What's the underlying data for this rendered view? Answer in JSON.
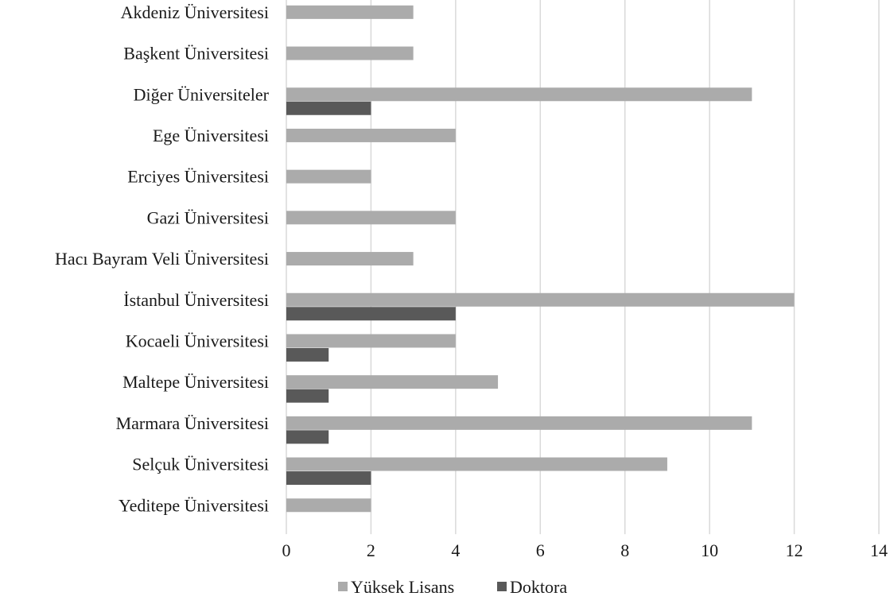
{
  "chart_data": {
    "type": "bar",
    "orientation": "horizontal",
    "title": "",
    "xlabel": "",
    "ylabel": "",
    "categories": [
      "Akdeniz Üniversitesi",
      "Başkent Üniversitesi",
      "Diğer Üniversiteler",
      "Ege Üniversitesi",
      "Erciyes Üniversitesi",
      "Gazi Üniversitesi",
      "Hacı Bayram Veli Üniversitesi",
      "İstanbul Üniversitesi",
      "Kocaeli Üniversitesi",
      "Maltepe Üniversitesi",
      "Marmara Üniversitesi",
      "Selçuk Üniversitesi",
      "Yeditepe Üniversitesi"
    ],
    "series": [
      {
        "name": "Yüksek Lisans",
        "color": "#ababab",
        "values": [
          3,
          3,
          11,
          4,
          2,
          4,
          3,
          12,
          4,
          5,
          11,
          9,
          2
        ]
      },
      {
        "name": "Doktora",
        "color": "#595959",
        "values": [
          0,
          0,
          2,
          0,
          0,
          0,
          0,
          4,
          1,
          1,
          1,
          2,
          0
        ]
      }
    ],
    "xlim": [
      0,
      14
    ],
    "xticks": [
      0,
      2,
      4,
      6,
      8,
      10,
      12,
      14
    ],
    "grid": "vertical",
    "legend_position": "bottom"
  }
}
